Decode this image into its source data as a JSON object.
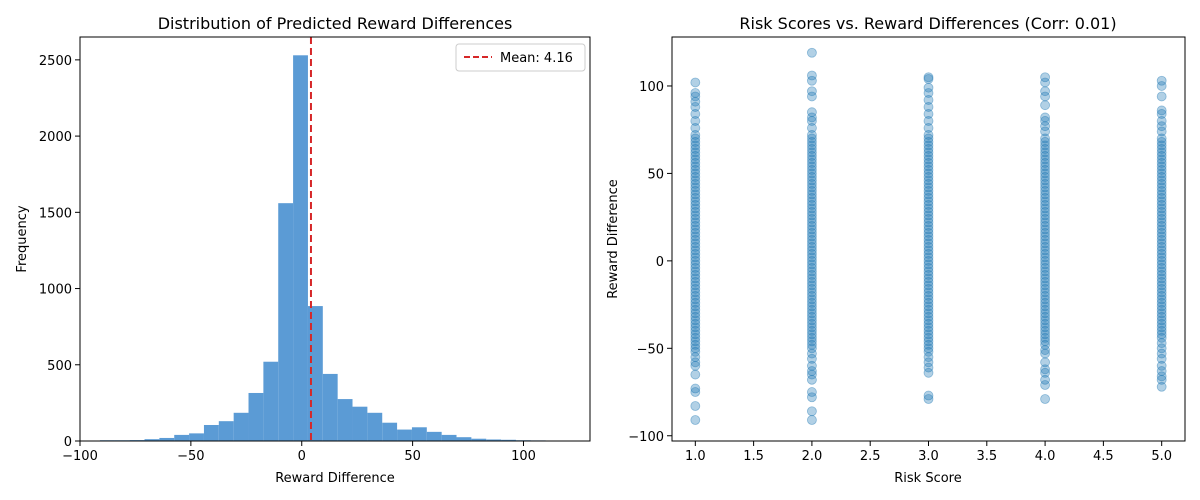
{
  "chart_data": [
    {
      "type": "bar",
      "subtype": "histogram",
      "title": "Distribution of Predicted Reward Differences",
      "xlabel": "Reward Difference",
      "ylabel": "Frequency",
      "xlim": [
        -100,
        130
      ],
      "ylim": [
        0,
        2650
      ],
      "xticks": [
        -100,
        -50,
        0,
        50,
        100
      ],
      "yticks": [
        0,
        500,
        1000,
        1500,
        2000,
        2500
      ],
      "bar_color": "#5b9bd5",
      "bins": [
        {
          "x0": -91,
          "x1": -84.3,
          "count": 5
        },
        {
          "x0": -84.3,
          "x1": -77.6,
          "count": 5
        },
        {
          "x0": -77.6,
          "x1": -70.9,
          "count": 6
        },
        {
          "x0": -70.9,
          "x1": -64.2,
          "count": 12
        },
        {
          "x0": -64.2,
          "x1": -57.5,
          "count": 20
        },
        {
          "x0": -57.5,
          "x1": -50.8,
          "count": 40
        },
        {
          "x0": -50.8,
          "x1": -44.1,
          "count": 50
        },
        {
          "x0": -44.1,
          "x1": -37.4,
          "count": 105
        },
        {
          "x0": -37.4,
          "x1": -30.7,
          "count": 130
        },
        {
          "x0": -30.7,
          "x1": -24.0,
          "count": 185
        },
        {
          "x0": -24.0,
          "x1": -17.3,
          "count": 315
        },
        {
          "x0": -17.3,
          "x1": -10.6,
          "count": 520
        },
        {
          "x0": -10.6,
          "x1": -3.9,
          "count": 1560
        },
        {
          "x0": -3.9,
          "x1": 2.8,
          "count": 2530
        },
        {
          "x0": 2.8,
          "x1": 9.5,
          "count": 885
        },
        {
          "x0": 9.5,
          "x1": 16.2,
          "count": 440
        },
        {
          "x0": 16.2,
          "x1": 22.9,
          "count": 275
        },
        {
          "x0": 22.9,
          "x1": 29.6,
          "count": 225
        },
        {
          "x0": 29.6,
          "x1": 36.3,
          "count": 185
        },
        {
          "x0": 36.3,
          "x1": 43.0,
          "count": 120
        },
        {
          "x0": 43.0,
          "x1": 49.7,
          "count": 75
        },
        {
          "x0": 49.7,
          "x1": 56.4,
          "count": 90
        },
        {
          "x0": 56.4,
          "x1": 63.1,
          "count": 60
        },
        {
          "x0": 63.1,
          "x1": 69.8,
          "count": 40
        },
        {
          "x0": 69.8,
          "x1": 76.5,
          "count": 25
        },
        {
          "x0": 76.5,
          "x1": 83.2,
          "count": 15
        },
        {
          "x0": 83.2,
          "x1": 89.9,
          "count": 10
        },
        {
          "x0": 89.9,
          "x1": 96.6,
          "count": 8
        },
        {
          "x0": 96.6,
          "x1": 103.3,
          "count": 5
        },
        {
          "x0": 103.3,
          "x1": 110.0,
          "count": 4
        }
      ],
      "mean_line": {
        "value": 4.16,
        "color": "#d62728",
        "label": "Mean: 4.16"
      },
      "legend_position": "top-right",
      "grid": false
    },
    {
      "type": "scatter",
      "title": "Risk Scores vs. Reward Differences (Corr: 0.01)",
      "xlabel": "Risk Score",
      "ylabel": "Reward Difference",
      "xlim": [
        0.8,
        5.2
      ],
      "ylim": [
        -103,
        128
      ],
      "xticks": [
        1.0,
        1.5,
        2.0,
        2.5,
        3.0,
        3.5,
        4.0,
        4.5,
        5.0
      ],
      "yticks": [
        -100,
        -50,
        0,
        50,
        100
      ],
      "point_color": "#1f77b4",
      "point_alpha": 0.35,
      "grid": false,
      "series": [
        {
          "x": 1.0,
          "y": [
            102,
            96,
            94,
            91,
            88,
            84,
            80,
            76,
            72,
            70,
            68,
            66,
            64,
            62,
            60,
            58,
            56,
            54,
            52,
            50,
            48,
            46,
            44,
            42,
            40,
            38,
            36,
            34,
            32,
            30,
            28,
            26,
            24,
            22,
            20,
            18,
            16,
            14,
            12,
            10,
            8,
            6,
            4,
            2,
            0,
            -2,
            -4,
            -6,
            -8,
            -10,
            -12,
            -14,
            -16,
            -18,
            -20,
            -22,
            -24,
            -26,
            -28,
            -30,
            -32,
            -34,
            -36,
            -38,
            -40,
            -42,
            -44,
            -46,
            -48,
            -50,
            -52,
            -55,
            -58,
            -60,
            -65,
            -73,
            -75,
            -83,
            -91
          ]
        },
        {
          "x": 2.0,
          "y": [
            119,
            106,
            103,
            97,
            94,
            85,
            82,
            80,
            76,
            72,
            70,
            68,
            66,
            64,
            62,
            60,
            58,
            56,
            54,
            52,
            50,
            48,
            46,
            44,
            42,
            40,
            38,
            36,
            34,
            32,
            30,
            28,
            26,
            24,
            22,
            20,
            18,
            16,
            14,
            12,
            10,
            8,
            6,
            4,
            2,
            0,
            -2,
            -4,
            -6,
            -8,
            -10,
            -12,
            -14,
            -16,
            -18,
            -20,
            -22,
            -24,
            -26,
            -28,
            -30,
            -32,
            -34,
            -36,
            -38,
            -40,
            -42,
            -44,
            -46,
            -48,
            -50,
            -53,
            -56,
            -60,
            -63,
            -65,
            -68,
            -75,
            -78,
            -86,
            -91
          ]
        },
        {
          "x": 3.0,
          "y": [
            105,
            104,
            99,
            96,
            92,
            88,
            84,
            80,
            76,
            72,
            70,
            68,
            66,
            64,
            62,
            60,
            58,
            56,
            54,
            52,
            50,
            48,
            46,
            44,
            42,
            40,
            38,
            36,
            34,
            32,
            30,
            28,
            26,
            24,
            22,
            20,
            18,
            16,
            14,
            12,
            10,
            8,
            6,
            4,
            2,
            0,
            -2,
            -4,
            -6,
            -8,
            -10,
            -12,
            -14,
            -16,
            -18,
            -20,
            -22,
            -24,
            -26,
            -28,
            -30,
            -32,
            -34,
            -36,
            -38,
            -40,
            -42,
            -44,
            -46,
            -48,
            -50,
            -52,
            -55,
            -58,
            -61,
            -64,
            -77,
            -79
          ]
        },
        {
          "x": 4.0,
          "y": [
            105,
            102,
            97,
            94,
            89,
            82,
            80,
            77,
            74,
            70,
            68,
            66,
            64,
            62,
            60,
            58,
            56,
            54,
            52,
            50,
            48,
            46,
            44,
            42,
            40,
            38,
            36,
            34,
            32,
            30,
            28,
            26,
            24,
            22,
            20,
            18,
            16,
            14,
            12,
            10,
            8,
            6,
            4,
            2,
            0,
            -2,
            -4,
            -6,
            -8,
            -10,
            -12,
            -14,
            -16,
            -18,
            -20,
            -22,
            -24,
            -26,
            -28,
            -30,
            -32,
            -34,
            -36,
            -38,
            -40,
            -42,
            -44,
            -46,
            -48,
            -51,
            -53,
            -58,
            -62,
            -64,
            -68,
            -71,
            -79
          ]
        },
        {
          "x": 5.0,
          "y": [
            103,
            100,
            94,
            86,
            84,
            80,
            77,
            74,
            70,
            68,
            66,
            64,
            62,
            60,
            58,
            56,
            54,
            52,
            50,
            48,
            46,
            44,
            42,
            40,
            38,
            36,
            34,
            32,
            30,
            28,
            26,
            24,
            22,
            20,
            18,
            16,
            14,
            12,
            10,
            8,
            6,
            4,
            2,
            0,
            -2,
            -4,
            -6,
            -8,
            -10,
            -12,
            -14,
            -16,
            -18,
            -20,
            -22,
            -24,
            -26,
            -28,
            -30,
            -32,
            -34,
            -36,
            -38,
            -40,
            -42,
            -44,
            -47,
            -50,
            -53,
            -56,
            -60,
            -63,
            -66,
            -68,
            -72
          ]
        }
      ]
    }
  ]
}
